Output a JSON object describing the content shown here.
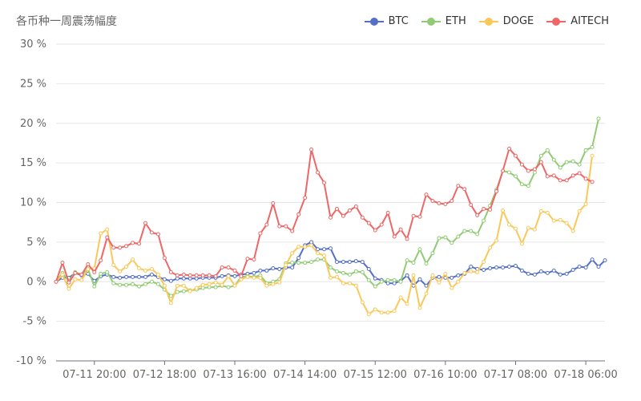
{
  "chart_data": {
    "type": "line",
    "title": "各币种一周震荡幅度",
    "yunit": "%",
    "ylim": [
      -10,
      30
    ],
    "yticks": [
      -10,
      -5,
      0,
      5,
      10,
      15,
      20,
      25,
      30
    ],
    "ytick_labels": [
      "-10 %",
      "-5 %",
      "0 %",
      "5 %",
      "10 %",
      "15 %",
      "20 %",
      "25 %",
      "30 %"
    ],
    "xticks": [
      {
        "index": 6,
        "label": "07-11 20:00"
      },
      {
        "index": 17,
        "label": "07-12 18:00"
      },
      {
        "index": 28,
        "label": "07-13 16:00"
      },
      {
        "index": 39,
        "label": "07-14 14:00"
      },
      {
        "index": 50,
        "label": "07-15 12:00"
      },
      {
        "index": 61,
        "label": "07-16 10:00"
      },
      {
        "index": 72,
        "label": "07-17 08:00"
      },
      {
        "index": 83,
        "label": "07-18 06:00"
      }
    ],
    "grid": true,
    "legend_position": "top-right",
    "series": [
      {
        "name": "BTC",
        "color": "#5470c6",
        "values": [
          0,
          0.5,
          0.5,
          1.1,
          0.8,
          1.0,
          0.1,
          0.7,
          0.9,
          0.6,
          0.5,
          0.6,
          0.6,
          0.6,
          0.6,
          0.9,
          0.6,
          0.3,
          0.1,
          0.4,
          0.4,
          0.4,
          0.4,
          0.5,
          0.5,
          0.5,
          0.7,
          0.8,
          0.7,
          0.9,
          1.0,
          1.1,
          1.4,
          1.4,
          1.7,
          1.6,
          1.8,
          1.8,
          3.0,
          4.6,
          5.0,
          4.1,
          4.1,
          4.2,
          2.5,
          2.5,
          2.5,
          2.6,
          2.5,
          1.6,
          0.4,
          0.2,
          -0.2,
          -0.2,
          0.1,
          0.8,
          -0.5,
          0.3,
          -0.5,
          0.5,
          0.6,
          0.5,
          0.5,
          0.8,
          1.0,
          1.9,
          1.6,
          1.5,
          1.7,
          1.8,
          1.8,
          1.9,
          2.0,
          1.4,
          1.0,
          0.9,
          1.3,
          1.1,
          1.4,
          0.9,
          1.0,
          1.5,
          1.9,
          1.8,
          2.8,
          1.9,
          2.7
        ]
      },
      {
        "name": "ETH",
        "color": "#91cc75",
        "values": [
          0,
          1.1,
          0.1,
          1.2,
          0.9,
          1.6,
          -0.6,
          1.0,
          1.2,
          -0.2,
          -0.4,
          -0.4,
          -0.3,
          -0.6,
          -0.3,
          0.0,
          -0.3,
          -1.0,
          -1.8,
          -1.3,
          -1.2,
          -1.1,
          -1.0,
          -0.8,
          -0.7,
          -0.7,
          -0.5,
          -0.7,
          -0.5,
          0.6,
          0.7,
          0.6,
          0.8,
          -0.2,
          0.0,
          0.3,
          2.3,
          2.4,
          2.4,
          2.4,
          2.5,
          2.8,
          2.8,
          1.8,
          1.3,
          1.1,
          0.9,
          1.3,
          1.2,
          0.2,
          -0.6,
          0.0,
          0.2,
          0.2,
          0.0,
          2.7,
          2.4,
          4.1,
          2.3,
          3.6,
          5.5,
          5.6,
          4.9,
          5.7,
          6.4,
          6.4,
          6.0,
          7.7,
          9.6,
          11.6,
          14.0,
          13.8,
          13.3,
          12.3,
          12.1,
          13.8,
          15.9,
          16.6,
          15.4,
          14.4,
          15.1,
          15.2,
          14.8,
          16.6,
          17.0,
          20.6
        ]
      },
      {
        "name": "DOGE",
        "color": "#fac858",
        "values": [
          0,
          0.9,
          -0.9,
          0.3,
          0.2,
          1.6,
          1.7,
          6.1,
          6.6,
          2.1,
          1.3,
          1.9,
          2.8,
          1.7,
          1.4,
          1.6,
          0.9,
          -0.5,
          -2.7,
          -0.5,
          -0.5,
          -1.2,
          -0.8,
          -0.4,
          -0.3,
          -0.1,
          -0.4,
          0.7,
          -0.5,
          0.3,
          0.6,
          0.5,
          0.5,
          -0.5,
          -0.3,
          -0.1,
          2.1,
          3.6,
          4.4,
          4.4,
          4.6,
          3.6,
          3.3,
          0.5,
          0.6,
          -0.2,
          -0.2,
          -0.5,
          -2.6,
          -4.1,
          -3.5,
          -3.9,
          -3.9,
          -3.7,
          -2.0,
          -2.8,
          0.8,
          -3.3,
          -1.5,
          0.8,
          -0.1,
          1.0,
          -0.8,
          0.0,
          1.1,
          1.3,
          1.2,
          2.5,
          4.3,
          5.2,
          9.0,
          7.2,
          6.7,
          4.8,
          6.8,
          6.6,
          8.9,
          8.7,
          7.7,
          7.8,
          7.4,
          6.4,
          8.9,
          9.8,
          15.9
        ]
      },
      {
        "name": "AITECH",
        "color": "#ee6666",
        "values": [
          0,
          2.4,
          -0.1,
          1.1,
          0.9,
          2.2,
          1.2,
          2.7,
          5.6,
          4.3,
          4.3,
          4.5,
          4.9,
          4.8,
          7.4,
          6.2,
          6.0,
          3.0,
          1.2,
          0.8,
          0.9,
          0.8,
          0.8,
          0.8,
          0.8,
          0.7,
          1.8,
          1.8,
          1.4,
          0.7,
          2.9,
          2.8,
          6.1,
          7.2,
          9.9,
          7.0,
          7.0,
          6.4,
          8.5,
          10.6,
          16.7,
          13.8,
          12.5,
          8.1,
          9.2,
          8.3,
          9.0,
          9.5,
          8.1,
          7.4,
          6.5,
          7.2,
          8.7,
          5.7,
          6.6,
          5.4,
          8.3,
          8.2,
          11.0,
          10.2,
          9.9,
          9.8,
          10.2,
          12.1,
          11.7,
          9.7,
          8.4,
          9.2,
          9.1,
          11.4,
          14.0,
          16.8,
          15.9,
          14.8,
          14.0,
          14.2,
          15.1,
          13.3,
          13.4,
          12.8,
          12.8,
          13.4,
          13.7,
          13.0,
          12.6
        ]
      }
    ]
  }
}
